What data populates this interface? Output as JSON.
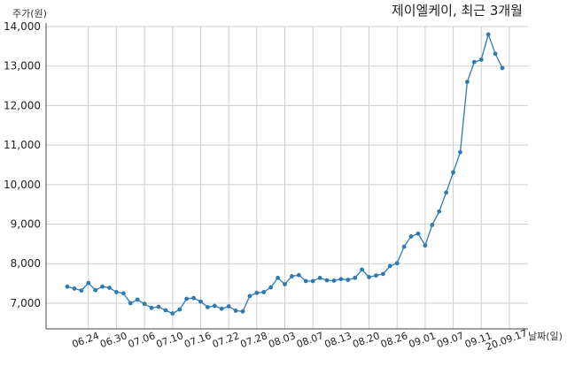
{
  "chart_data": {
    "type": "line",
    "title": "제이엘케이, 최근 3개월",
    "ylabel": "주가(원)",
    "xlabel": "날짜(일)",
    "ylim": [
      6350,
      14000
    ],
    "yticks": [
      7000,
      8000,
      9000,
      10000,
      11000,
      12000,
      13000,
      14000
    ],
    "ytick_labels": [
      "7,000",
      "8,000",
      "9,000",
      "10,000",
      "11,000",
      "12,000",
      "13,000",
      "14,000"
    ],
    "xtick_labels": [
      "06.24",
      "06.30",
      "07.06",
      "07.10",
      "07.16",
      "07.22",
      "07.28",
      "08.03",
      "08.07",
      "08.13",
      "08.20",
      "08.26",
      "09.01",
      "09.07",
      "09.11",
      "20.09.17"
    ],
    "xtick_index": [
      3,
      7,
      11,
      15,
      19,
      23,
      27,
      31,
      35,
      39,
      43,
      47,
      51,
      55,
      59,
      63
    ],
    "grid": true,
    "color": "#2e7bb4",
    "series": [
      {
        "values": [
          7420,
          7370,
          7320,
          7510,
          7330,
          7420,
          7390,
          7280,
          7250,
          7000,
          7090,
          6980,
          6880,
          6910,
          6820,
          6740,
          6840,
          7110,
          7130,
          7040,
          6900,
          6930,
          6860,
          6920,
          6810,
          6790,
          7180,
          7260,
          7280,
          7400,
          7640,
          7480,
          7680,
          7710,
          7560,
          7560,
          7640,
          7580,
          7570,
          7610,
          7590,
          7640,
          7850,
          7660,
          7700,
          7740,
          7940,
          8010,
          8430,
          8690,
          8760,
          8460,
          8980,
          9320,
          9800,
          10310,
          10820,
          12600,
          13100,
          13160,
          13800,
          13310,
          12950
        ]
      }
    ]
  }
}
